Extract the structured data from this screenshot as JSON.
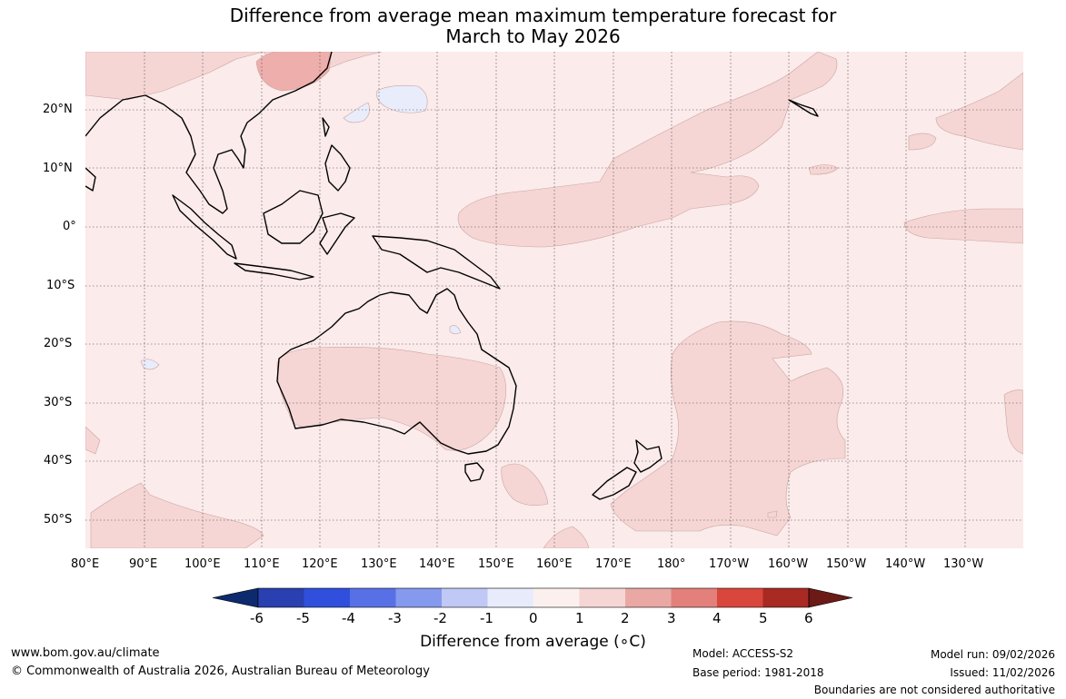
{
  "title": {
    "line1": "Difference from average mean maximum temperature forecast for",
    "line2": "March to May 2026"
  },
  "axes": {
    "lat_labels": [
      "20°N",
      "10°N",
      "0°",
      "10°S",
      "20°S",
      "30°S",
      "40°S",
      "50°S"
    ],
    "lon_labels": [
      "80°E",
      "90°E",
      "100°E",
      "110°E",
      "120°E",
      "130°E",
      "140°E",
      "150°E",
      "160°E",
      "170°E",
      "180°",
      "170°W",
      "160°W",
      "150°W",
      "140°W",
      "130°W"
    ]
  },
  "colorbar": {
    "label": "Difference from average (∘C)",
    "ticks": [
      "-6",
      "-5",
      "-4",
      "-3",
      "-2",
      "-1",
      "0",
      "1",
      "2",
      "3",
      "4",
      "5",
      "6"
    ],
    "colors": [
      "#0d2a6e",
      "#2a3fb0",
      "#2f4fdc",
      "#5870e6",
      "#8599ee",
      "#c0c8f5",
      "#e8ebfb",
      "#fcf0ee",
      "#f5d6d5",
      "#eaa8a5",
      "#e3807b",
      "#d9463b",
      "#a82a23",
      "#6b1a16"
    ],
    "fill_colors": {
      "base": "#fbebea",
      "warm": "#f5d6d5",
      "warmer": "#eeaeab",
      "cool": "#e9ecfb"
    }
  },
  "footer": {
    "url": "www.bom.gov.au/climate",
    "copyright": "© Commonwealth of Australia 2026, Australian Bureau of Meteorology",
    "model": "Model: ACCESS-S2",
    "base_period": "Base period: 1981-2018",
    "model_run": "Model run: 09/02/2026",
    "issued": "Issued: 11/02/2026",
    "disclaimer": "Boundaries are not considered authoritative"
  }
}
